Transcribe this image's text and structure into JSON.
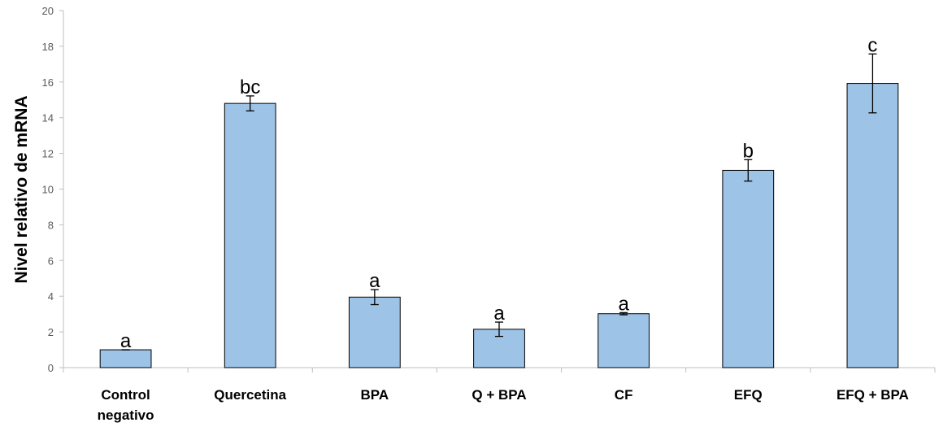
{
  "chart_data": {
    "type": "bar",
    "title": "",
    "xlabel": "",
    "ylabel": "Nivel relativo de mRNA",
    "ylim": [
      0,
      20
    ],
    "yticks": [
      0,
      2,
      4,
      6,
      8,
      10,
      12,
      14,
      16,
      18,
      20
    ],
    "grid": false,
    "legend": "none",
    "categories": [
      [
        "Control",
        "negativo"
      ],
      [
        "Quercetina"
      ],
      [
        "BPA"
      ],
      [
        "Q + BPA"
      ],
      [
        "CF"
      ],
      [
        "EFQ"
      ],
      [
        "EFQ + BPA"
      ]
    ],
    "values": [
      1.0,
      14.8,
      3.95,
      2.15,
      3.02,
      11.05,
      15.92
    ],
    "errors": [
      0.0,
      0.42,
      0.42,
      0.4,
      0.06,
      0.6,
      1.65
    ],
    "significance": [
      "a",
      "bc",
      "a",
      "a",
      "a",
      "b",
      "c"
    ],
    "colors": {
      "bar_fill": "#9DC3E6",
      "bar_stroke": "#000000",
      "axis": "#BFBFBF"
    }
  }
}
